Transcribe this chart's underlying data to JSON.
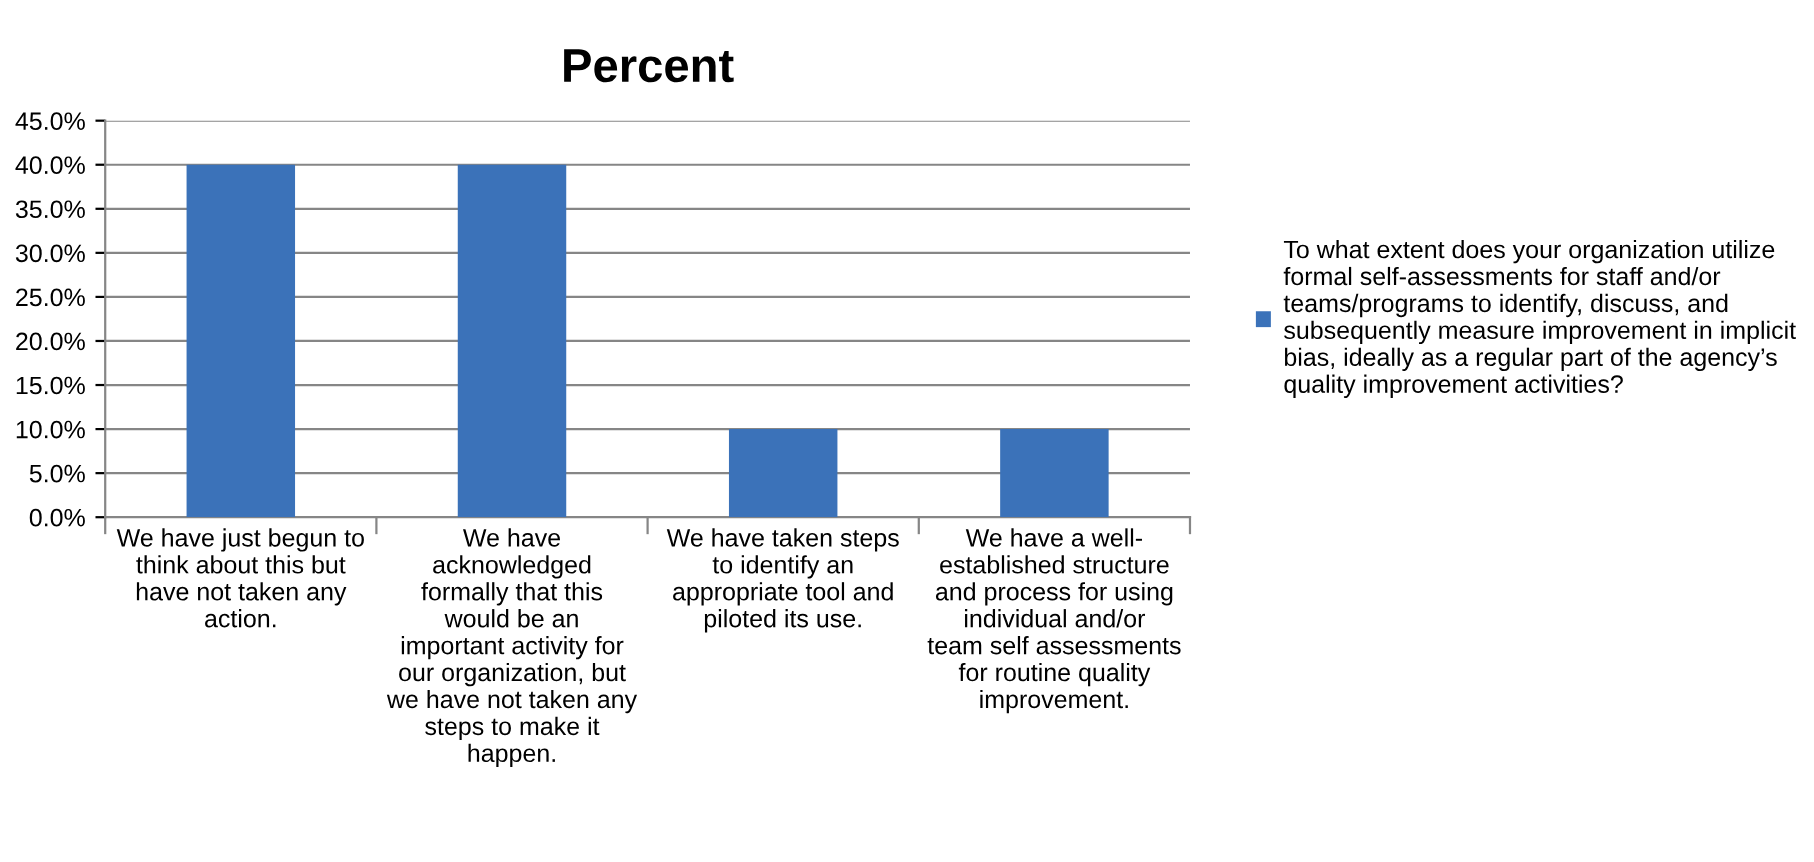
{
  "chart_data": {
    "type": "bar",
    "title": "Percent",
    "categories": [
      "We have just begun to\nthink about this but\nhave not taken any\naction.",
      "We have\nacknowledged\nformally that this\nwould be an\nimportant activity for\nour organization, but\nwe have not taken any\nsteps to make it\nhappen.",
      "We have taken steps\nto identify an\nappropriate tool and\npiloted its use.",
      "We have a well-\nestablished structure\nand process for using\nindividual and/or\nteam self assessments\nfor routine quality\nimprovement."
    ],
    "series": [
      {
        "name": "To what extent does your organization utilize\nformal self-assessments for staff and/or\nteams/programs to identify, discuss, and\nsubsequently measure improvement in implicit\nbias, ideally as a regular part of the agency’s\nquality improvement activities?",
        "color": "#3b72b9",
        "values": [
          40,
          40,
          10,
          10
        ]
      }
    ],
    "ylim": [
      0,
      45
    ],
    "yticks": [
      {
        "value": 0,
        "label": "0.0%"
      },
      {
        "value": 5,
        "label": "5.0%"
      },
      {
        "value": 10,
        "label": "10.0%"
      },
      {
        "value": 15,
        "label": "15.0%"
      },
      {
        "value": 20,
        "label": "20.0%"
      },
      {
        "value": 25,
        "label": "25.0%"
      },
      {
        "value": 30,
        "label": "30.0%"
      },
      {
        "value": 35,
        "label": "35.0%"
      },
      {
        "value": 40,
        "label": "40.0%"
      },
      {
        "value": 45,
        "label": "45.0%"
      }
    ],
    "grid": "y",
    "legend": "right"
  }
}
